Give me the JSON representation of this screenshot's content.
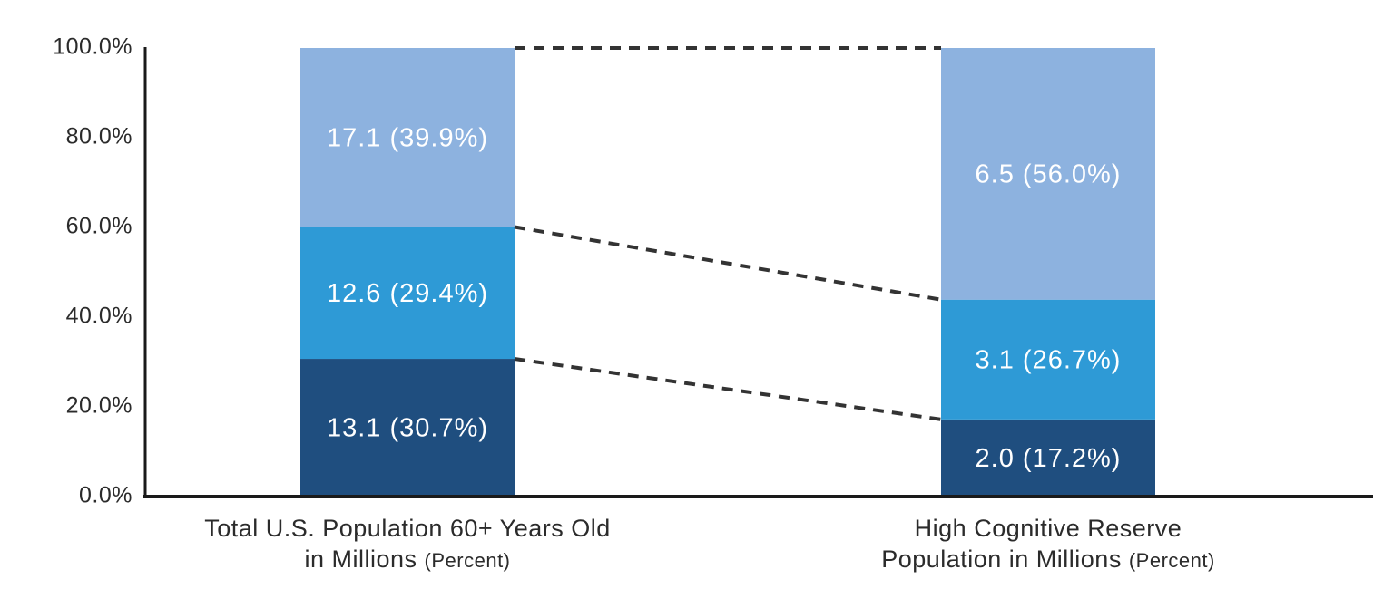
{
  "chart_data": {
    "type": "bar",
    "variant": "stacked-percent-comparison",
    "title": "",
    "y_axis": {
      "min": 0,
      "max": 100,
      "tick_step": 20,
      "tick_labels": [
        "0.0%",
        "20.0%",
        "40.0%",
        "60.0%",
        "80.0%",
        "100.0%"
      ]
    },
    "categories": [
      {
        "label_line1": "Total U.S. Population 60+ Years Old",
        "label_line2": "in Millions",
        "label_note": "(Percent)"
      },
      {
        "label_line1": "High Cognitive Reserve",
        "label_line2": "Population in Millions",
        "label_note": "(Percent)"
      }
    ],
    "series": [
      {
        "name": "bottom-segment",
        "color": "#1F4E7F",
        "values_millions": [
          13.1,
          2.0
        ],
        "percents": [
          30.7,
          17.2
        ],
        "labels": [
          "13.1 (30.7%)",
          "2.0 (17.2%)"
        ]
      },
      {
        "name": "middle-segment",
        "color": "#2E9AD6",
        "values_millions": [
          12.6,
          3.1
        ],
        "percents": [
          29.4,
          26.7
        ],
        "labels": [
          "12.6 (29.4%)",
          "3.1 (26.7%)"
        ]
      },
      {
        "name": "top-segment",
        "color": "#8DB2DF",
        "values_millions": [
          17.1,
          6.5
        ],
        "percents": [
          39.9,
          56.0
        ],
        "labels": [
          "17.1 (39.9%)",
          "6.5 (56.0%)"
        ]
      }
    ],
    "connectors": {
      "style": "dashed",
      "color": "#333333",
      "join_percent_pairs": [
        [
          30.7,
          17.2
        ],
        [
          60.1,
          43.9
        ],
        [
          100.0,
          100.0
        ]
      ]
    },
    "grid": false,
    "legend": false,
    "colors": {
      "axis": "#1A1A1A",
      "tick_text": "#2B2B2B",
      "segment_label_text": "#FFFFFF",
      "background": "#FFFFFF"
    }
  }
}
